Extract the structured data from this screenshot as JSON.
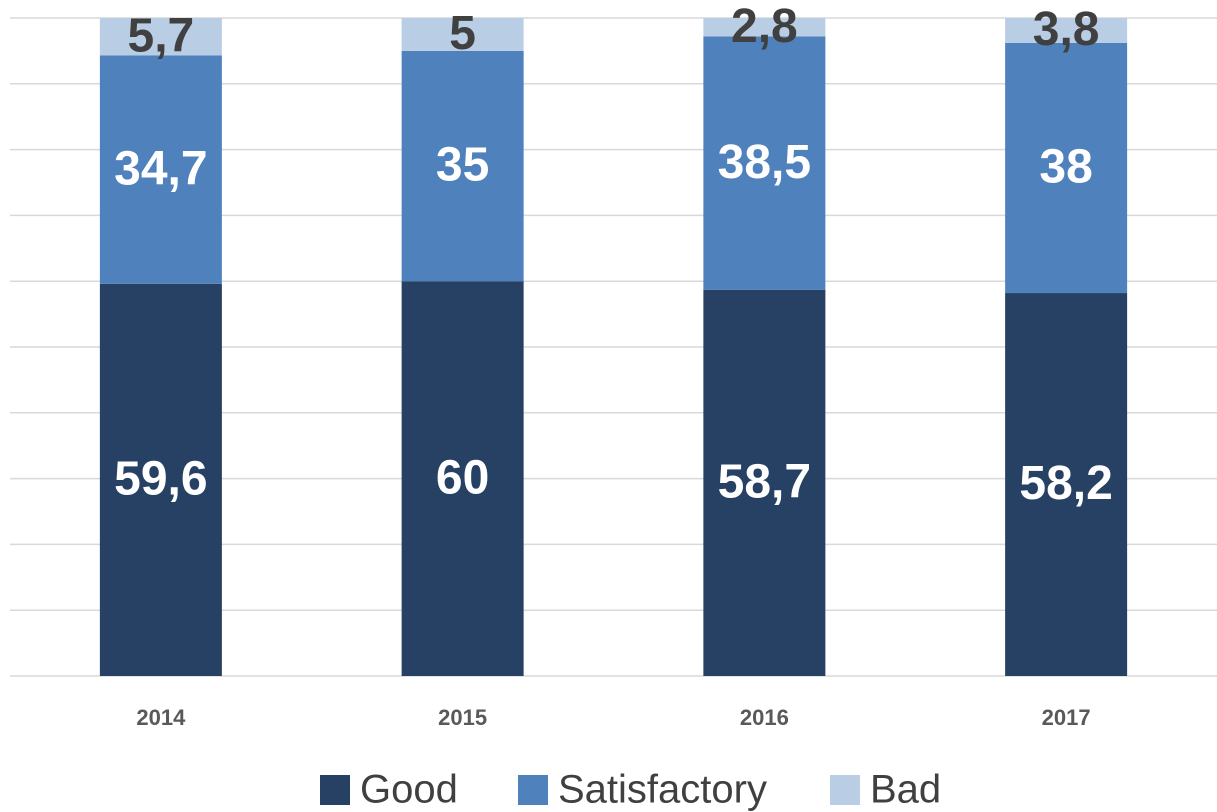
{
  "chart_data": {
    "type": "stacked_bar",
    "categories": [
      "2014",
      "2015",
      "2016",
      "2017"
    ],
    "series": [
      {
        "name": "Good",
        "color": "#264163",
        "label_color": "#ffffff",
        "values": [
          59.6,
          60,
          58.7,
          58.2
        ],
        "value_labels": [
          "59,6",
          "60",
          "58,7",
          "58,2"
        ]
      },
      {
        "name": "Satisfactory",
        "color": "#4f81bd",
        "label_color": "#ffffff",
        "values": [
          34.7,
          35,
          38.5,
          38
        ],
        "value_labels": [
          "34,7",
          "35",
          "38,5",
          "38"
        ]
      },
      {
        "name": "Bad",
        "color": "#b9cde5",
        "label_color": "#404040",
        "values": [
          5.7,
          5,
          2.8,
          3.8
        ],
        "value_labels": [
          "5,7",
          "5",
          "2,8",
          "3,8"
        ]
      }
    ],
    "ylim": [
      0,
      100
    ],
    "yticks": [
      0,
      10,
      20,
      30,
      40,
      50,
      60,
      70,
      80,
      90,
      100
    ],
    "grid": true,
    "legend": "bottom"
  }
}
